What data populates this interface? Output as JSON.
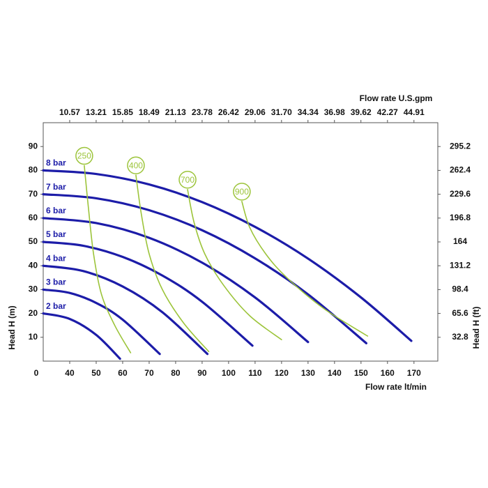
{
  "chart_data": {
    "type": "line",
    "top_axis_label": "Flow rate U.S.gpm",
    "xlabel": "Flow rate  lt/min",
    "ylabel": "Head H (m)",
    "y2label": "Head H (ft)",
    "origin_label": "0",
    "xlim": [
      30,
      179
    ],
    "xticks": [
      40,
      50,
      60,
      70,
      80,
      90,
      100,
      110,
      120,
      130,
      140,
      150,
      160,
      170
    ],
    "x2lim": [
      7.93,
      47.29
    ],
    "x2ticks": [
      10.57,
      13.21,
      15.85,
      18.49,
      21.13,
      23.78,
      26.42,
      29.06,
      {
        "value": 31.7,
        "label": "31.70"
      },
      34.34,
      36.98,
      39.62,
      42.27,
      44.91
    ],
    "ylim": [
      0,
      100
    ],
    "yticks": [
      10,
      20,
      30,
      40,
      50,
      60,
      70,
      80,
      90
    ],
    "y2lim": [
      0,
      328
    ],
    "y2ticks": [
      32.8,
      65.6,
      98.4,
      131.2,
      164,
      196.8,
      229.6,
      262.4,
      295.2
    ],
    "series": [
      {
        "name": "2 bar",
        "color": "#1c1ca8",
        "label_style": "left",
        "x": [
          30,
          40,
          50,
          59
        ],
        "values": [
          20,
          17.7,
          11,
          1
        ]
      },
      {
        "name": "3 bar",
        "color": "#1c1ca8",
        "label_style": "left",
        "x": [
          30,
          40,
          50,
          60,
          74
        ],
        "values": [
          30,
          28.6,
          24.4,
          17.4,
          3
        ]
      },
      {
        "name": "4 bar",
        "color": "#1c1ca8",
        "label_style": "left",
        "x": [
          30,
          45,
          60,
          75,
          92
        ],
        "values": [
          40,
          37.8,
          31.3,
          20.5,
          3
        ]
      },
      {
        "name": "5 bar",
        "color": "#1c1ca8",
        "label_style": "left",
        "x": [
          30,
          45,
          60,
          75,
          90,
          109
        ],
        "values": [
          50,
          48.4,
          43.7,
          35.9,
          24.9,
          6.5
        ]
      },
      {
        "name": "6 bar",
        "color": "#1c1ca8",
        "label_style": "left",
        "x": [
          30,
          50,
          70,
          90,
          110,
          130
        ],
        "values": [
          60,
          57.9,
          51.7,
          41.3,
          26.7,
          8
        ]
      },
      {
        "name": "7 bar",
        "color": "#1c1ca8",
        "label_style": "left",
        "x": [
          30,
          50,
          70,
          90,
          110,
          130,
          152
        ],
        "values": [
          70,
          68.3,
          63.3,
          54.9,
          43.1,
          28,
          7.5
        ]
      },
      {
        "name": "8 bar",
        "color": "#1c1ca8",
        "label_style": "left",
        "x": [
          30,
          50,
          70,
          90,
          110,
          130,
          150,
          169
        ],
        "values": [
          80,
          78.5,
          74.1,
          66.7,
          56.3,
          43,
          26.7,
          8.5
        ]
      },
      {
        "name": "250",
        "color": "#9cc43a",
        "label_style": "circle",
        "x": [
          45.5,
          47,
          49,
          52,
          57,
          63
        ],
        "values": [
          82,
          65,
          45,
          28,
          15,
          3.5
        ]
      },
      {
        "name": "400",
        "color": "#9cc43a",
        "label_style": "circle",
        "x": [
          65,
          67,
          70,
          75,
          83,
          92.5
        ],
        "values": [
          78,
          62,
          45,
          30,
          16,
          4
        ]
      },
      {
        "name": "700",
        "color": "#9cc43a",
        "label_style": "circle",
        "x": [
          84.5,
          87,
          91,
          98,
          108,
          120
        ],
        "values": [
          72,
          58,
          45,
          32,
          19,
          9
        ]
      },
      {
        "name": "900",
        "color": "#9cc43a",
        "label_style": "circle",
        "x": [
          105,
          108,
          114,
          122,
          136,
          152.5
        ],
        "values": [
          67,
          56,
          45,
          35,
          22,
          10.5
        ]
      }
    ]
  }
}
